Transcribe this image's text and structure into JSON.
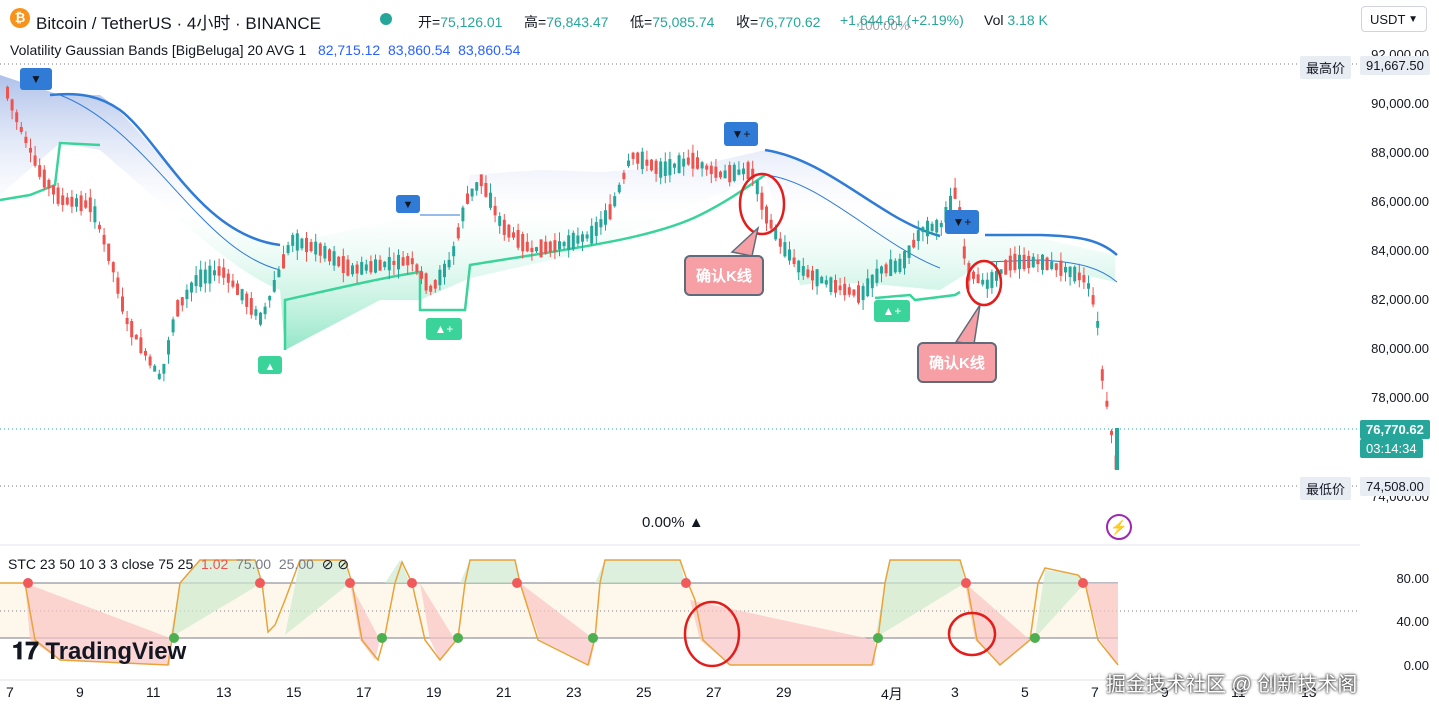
{
  "header": {
    "symbol_icon": "bitcoin-icon",
    "title": "Bitcoin / TetherUS · 4小时 · BINANCE",
    "ohlc": [
      {
        "label": "开=",
        "value": "75,126.01"
      },
      {
        "label": "高=",
        "value": "76,843.47"
      },
      {
        "label": "低=",
        "value": "75,085.74"
      },
      {
        "label": "收=",
        "value": "76,770.62"
      }
    ],
    "change": "+1,644.61 (+2.19%)",
    "vol_label": "Vol",
    "vol_value": "3.18 K",
    "currency": "USDT",
    "overlay_pct": "100.00%"
  },
  "indicator": {
    "name": "Volatility Gaussian Bands [BigBeluga] 20 AVG 1",
    "values": [
      "82,715.12",
      "83,860.54",
      "83,860.54"
    ]
  },
  "price_axis": {
    "ticks": [
      "92,000.00",
      "90,000.00",
      "88,000.00",
      "86,000.00",
      "84,000.00",
      "82,000.00",
      "80,000.00",
      "78,000.00",
      "74,000.00"
    ],
    "high_label": "最高价",
    "high_value": "91,667.50",
    "low_label": "最低价",
    "low_value": "74,508.00",
    "current_price": "76,770.62",
    "countdown": "03:14:34"
  },
  "stc": {
    "legend": "STC 23 50 10 3 3 close 75 25",
    "value": "1.02",
    "upper": "75.00",
    "lower": "25.00",
    "axis_ticks": [
      "80.00",
      "40.00",
      "0.00"
    ]
  },
  "time_axis": [
    "7",
    "9",
    "11",
    "13",
    "15",
    "17",
    "19",
    "21",
    "23",
    "25",
    "27",
    "29",
    "4月",
    "3",
    "5",
    "7",
    "9",
    "11",
    "13"
  ],
  "callouts": [
    "确认K线",
    "确认K线"
  ],
  "pane_pct": "0.00%",
  "logo": "TradingView",
  "watermark": "掘金技术社区 @ 创新技术阁",
  "colors": {
    "up": "#26a69a",
    "down": "#ef5350",
    "band_top": "#2f7bd6",
    "band_bottom": "#3ad39a",
    "accent": "#2962ff"
  }
}
